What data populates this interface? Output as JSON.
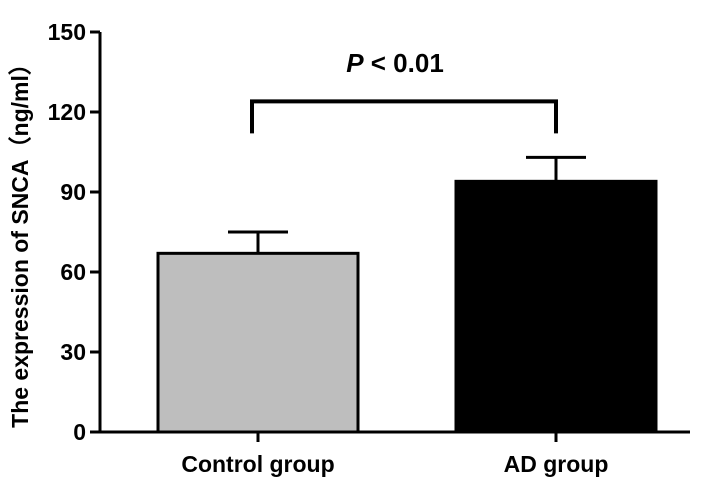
{
  "chart_data": {
    "type": "bar",
    "categories": [
      "Control group",
      "AD group"
    ],
    "values": [
      67,
      94
    ],
    "errors": [
      8,
      9
    ],
    "colors": [
      "#bebebe",
      "#000000"
    ],
    "xlabel": "",
    "ylabel": "The expression of SNCA（ng/ml）",
    "ylim": [
      0,
      150
    ],
    "yticks": [
      0,
      30,
      60,
      90,
      120,
      150
    ],
    "grid": false,
    "annotation": {
      "italic_part": "P",
      "rest": " < 0.01",
      "between": [
        "Control group",
        "AD group"
      ]
    }
  }
}
